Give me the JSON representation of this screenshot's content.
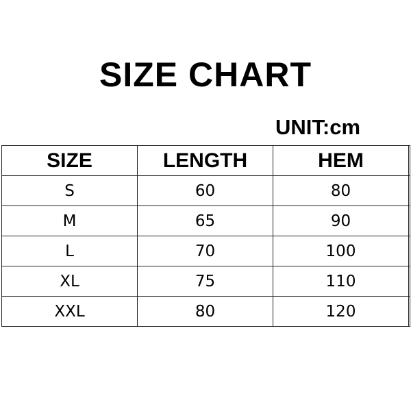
{
  "title": "SIZE CHART",
  "unit": "UNIT:cm",
  "table": {
    "headers": [
      "SIZE",
      "LENGTH",
      "HEM"
    ],
    "rows": [
      [
        "S",
        "60",
        "80"
      ],
      [
        "M",
        "65",
        "90"
      ],
      [
        "L",
        "70",
        "100"
      ],
      [
        "XL",
        "75",
        "110"
      ],
      [
        "XXL",
        "80",
        "120"
      ]
    ]
  }
}
